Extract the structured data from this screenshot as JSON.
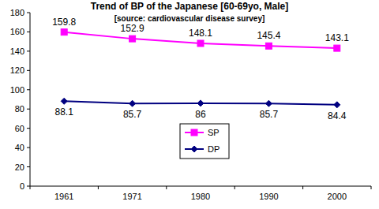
{
  "chart_data": {
    "type": "line",
    "title": "Trend of BP of the Japanese [60-69yo, Male]",
    "subtitle": "[source: cardiovascular disease survey]",
    "categories": [
      "1961",
      "1971",
      "1980",
      "1990",
      "2000"
    ],
    "series": [
      {
        "name": "SP",
        "color": "#ff00ff",
        "marker": "square",
        "values": [
          159.8,
          152.9,
          148.1,
          145.4,
          143.1
        ]
      },
      {
        "name": "DP",
        "color": "#000080",
        "marker": "diamond",
        "values": [
          88.1,
          85.7,
          86,
          85.7,
          84.4
        ]
      }
    ],
    "ylim": [
      0,
      180
    ],
    "yticks": [
      0,
      20,
      40,
      60,
      80,
      100,
      120,
      140,
      160,
      180
    ],
    "grid": false,
    "legend": "bottom",
    "data_labels": true
  }
}
